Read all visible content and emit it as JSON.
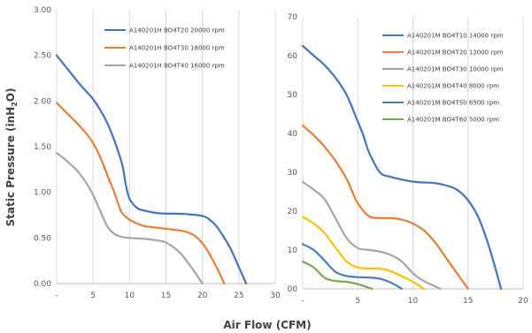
{
  "xlabel": "Air Flow (CFM)",
  "ylabel": {
    "prefix": "Static Pressure (inH",
    "sub": "2",
    "suffix": "O)"
  },
  "chart_data": [
    {
      "type": "line",
      "xlim": [
        0,
        30
      ],
      "ylim": [
        0,
        3.0
      ],
      "x_ticks": [
        "-",
        "5",
        "10",
        "15",
        "20",
        "25",
        "30"
      ],
      "y_ticks": [
        "0.00",
        "0.50",
        "1.00",
        "1.50",
        "2.00",
        "2.50",
        "3.00"
      ],
      "legend_position": "top-right",
      "grid": "vertical",
      "series": [
        {
          "name": "A140201H BO4T20 20000 rpm",
          "color": "#4472C4",
          "x": [
            0,
            1,
            2,
            3,
            4,
            5,
            6,
            7,
            8,
            9,
            9.5,
            10,
            11,
            12,
            14,
            16,
            18,
            20,
            21,
            22,
            23,
            24,
            25,
            26
          ],
          "y": [
            2.5,
            2.4,
            2.3,
            2.2,
            2.11,
            2.02,
            1.9,
            1.75,
            1.55,
            1.3,
            1.08,
            0.93,
            0.83,
            0.8,
            0.77,
            0.765,
            0.76,
            0.74,
            0.7,
            0.62,
            0.5,
            0.36,
            0.18,
            0.0
          ]
        },
        {
          "name": "A140201H BO4T30 18000 rpm",
          "color": "#ED7D31",
          "x": [
            0,
            1,
            2,
            3,
            4,
            5,
            6,
            7,
            8,
            8.5,
            9,
            10,
            11,
            12,
            14,
            16,
            17,
            18,
            19,
            20,
            21,
            22,
            23
          ],
          "y": [
            1.98,
            1.9,
            1.82,
            1.74,
            1.65,
            1.54,
            1.38,
            1.18,
            0.98,
            0.86,
            0.77,
            0.7,
            0.66,
            0.63,
            0.61,
            0.59,
            0.58,
            0.56,
            0.52,
            0.44,
            0.32,
            0.17,
            0.0
          ]
        },
        {
          "name": "A140201H BO4T40 16000 rpm",
          "color": "#A5A5A5",
          "x": [
            0,
            1,
            2,
            3,
            4,
            5,
            6,
            7,
            8,
            9,
            10,
            12,
            14,
            15,
            16,
            17,
            18,
            19,
            20
          ],
          "y": [
            1.43,
            1.37,
            1.3,
            1.22,
            1.11,
            0.97,
            0.79,
            0.62,
            0.54,
            0.51,
            0.5,
            0.49,
            0.47,
            0.45,
            0.4,
            0.33,
            0.23,
            0.12,
            0.0
          ]
        }
      ]
    },
    {
      "type": "line",
      "xlim": [
        0,
        20
      ],
      "ylim": [
        0,
        7
      ],
      "x_ticks": [
        "-",
        "5",
        "10",
        "15",
        "20"
      ],
      "y_ticks": [
        "00",
        "10",
        "20",
        "30",
        "40",
        "50",
        "60",
        "70"
      ],
      "legend_position": "top-right",
      "grid": "vertical",
      "series": [
        {
          "name": "A140201M BO4T10 14000 rpm",
          "color": "#4472C4",
          "x": [
            0,
            1,
            2,
            3,
            4,
            5,
            5.5,
            6,
            7,
            8,
            10,
            12,
            13,
            14,
            15,
            16,
            17,
            18
          ],
          "y": [
            6.25,
            6.0,
            5.75,
            5.42,
            4.98,
            4.3,
            3.95,
            3.52,
            3.0,
            2.88,
            2.76,
            2.72,
            2.66,
            2.55,
            2.28,
            1.8,
            1.0,
            0.0
          ]
        },
        {
          "name": "A140201M BO4T20 12000 rpm",
          "color": "#ED7D31",
          "x": [
            0,
            1,
            2,
            3,
            4,
            4.5,
            5,
            6,
            7,
            8,
            9,
            10,
            11,
            12,
            13,
            14,
            15
          ],
          "y": [
            4.2,
            3.95,
            3.65,
            3.28,
            2.82,
            2.5,
            2.2,
            1.87,
            1.82,
            1.82,
            1.78,
            1.68,
            1.5,
            1.2,
            0.8,
            0.4,
            0.0
          ]
        },
        {
          "name": "A140201M BO4T30 10000 rpm",
          "color": "#A5A5A5",
          "x": [
            0,
            1,
            2,
            3,
            4,
            5,
            6,
            7,
            8,
            9,
            10,
            11,
            12.5
          ],
          "y": [
            2.75,
            2.55,
            2.3,
            1.8,
            1.3,
            1.05,
            1.0,
            0.96,
            0.87,
            0.7,
            0.4,
            0.2,
            0.0
          ]
        },
        {
          "name": "A140201M BO4T40 8000 rpm",
          "color": "#FFC000",
          "x": [
            0,
            1,
            2,
            3,
            4,
            5,
            6,
            7,
            8,
            9,
            10,
            11
          ],
          "y": [
            1.85,
            1.68,
            1.43,
            1.05,
            0.7,
            0.55,
            0.52,
            0.52,
            0.45,
            0.32,
            0.18,
            0.0
          ]
        },
        {
          "name": "A140201M BO4T50 6500 rpm",
          "color": "#4A7EBB",
          "x": [
            0,
            1,
            2,
            3,
            4,
            5,
            6,
            7,
            8,
            9
          ],
          "y": [
            1.15,
            1.0,
            0.72,
            0.43,
            0.33,
            0.3,
            0.29,
            0.26,
            0.16,
            0.0
          ]
        },
        {
          "name": "A140201M BO4T60 5000 rpm",
          "color": "#70AD47",
          "x": [
            0,
            1,
            2,
            3,
            4,
            5,
            6.3
          ],
          "y": [
            0.7,
            0.55,
            0.28,
            0.2,
            0.18,
            0.12,
            0.0
          ]
        }
      ]
    }
  ]
}
